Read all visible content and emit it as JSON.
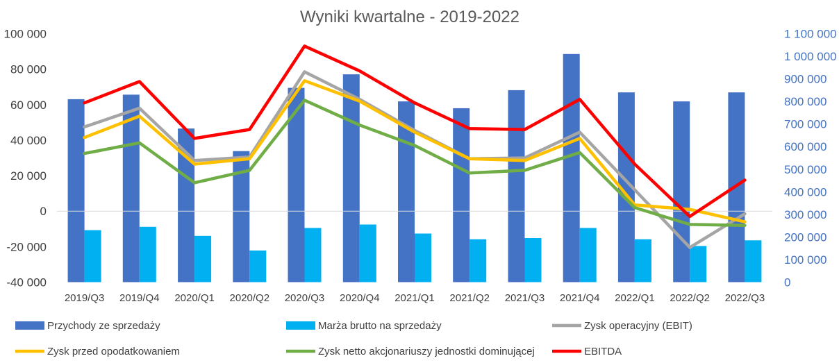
{
  "chart_data": {
    "type": "bar",
    "title": "Wyniki kwartalne - 2019-2022",
    "categories": [
      "2019/Q3",
      "2019/Q4",
      "2020/Q1",
      "2020/Q2",
      "2020/Q3",
      "2020/Q4",
      "2021/Q1",
      "2021/Q2",
      "2021/Q3",
      "2021/Q4",
      "2022/Q1",
      "2022/Q2",
      "2022/Q3"
    ],
    "axes": {
      "left": {
        "range": [
          -40000,
          100000
        ],
        "ticks": [
          100000,
          80000,
          60000,
          40000,
          20000,
          0,
          -20000,
          -40000
        ],
        "tick_labels": [
          "100 000",
          "80 000",
          "60 000",
          "40 000",
          "20 000",
          "0",
          "-20 000",
          "-40 000"
        ]
      },
      "right": {
        "range": [
          0,
          1100000
        ],
        "ticks": [
          1100000,
          1000000,
          900000,
          800000,
          700000,
          600000,
          500000,
          400000,
          300000,
          200000,
          100000,
          0
        ],
        "tick_labels": [
          "1 100 000",
          "1 000 000",
          "900 000",
          "800 000",
          "700 000",
          "600 000",
          "500 000",
          "400 000",
          "300 000",
          "200 000",
          "100 000",
          "0"
        ]
      }
    },
    "grid": false,
    "legend_position": "bottom",
    "series": [
      {
        "name": "Przychody ze sprzedaży",
        "type": "bar",
        "axis": "right",
        "color": "#4472c4",
        "values": [
          810000,
          830000,
          680000,
          580000,
          860000,
          920000,
          800000,
          770000,
          850000,
          1010000,
          840000,
          800000,
          840000
        ]
      },
      {
        "name": "Marża brutto na sprzedaży",
        "type": "bar",
        "axis": "right",
        "color": "#00b0f0",
        "values": [
          230000,
          245000,
          205000,
          140000,
          240000,
          255000,
          215000,
          190000,
          195000,
          240000,
          190000,
          160000,
          185000
        ]
      },
      {
        "name": "Zysk operacyjny (EBIT)",
        "type": "line",
        "axis": "left",
        "color": "#a5a5a5",
        "values": [
          47500,
          58000,
          28500,
          30500,
          78500,
          63000,
          45500,
          29500,
          30000,
          44500,
          12000,
          -20500,
          -1500
        ]
      },
      {
        "name": "Zysk przed opodatkowaniem",
        "type": "line",
        "axis": "left",
        "color": "#ffc000",
        "values": [
          41500,
          53500,
          26500,
          29500,
          73500,
          62000,
          44500,
          29500,
          28500,
          41000,
          3500,
          1000,
          -6000
        ]
      },
      {
        "name": "Zysk netto akcjonariuszy jednostki dominującej",
        "type": "line",
        "axis": "left",
        "color": "#70ad47",
        "values": [
          32500,
          38500,
          16000,
          23000,
          62500,
          48500,
          37000,
          21500,
          23000,
          33000,
          2000,
          -7500,
          -8000
        ]
      },
      {
        "name": "EBITDA",
        "type": "line",
        "axis": "left",
        "color": "#ff0000",
        "values": [
          61000,
          73000,
          41000,
          46000,
          93000,
          79000,
          61000,
          46500,
          46000,
          63000,
          26500,
          -3000,
          17500
        ]
      }
    ]
  }
}
